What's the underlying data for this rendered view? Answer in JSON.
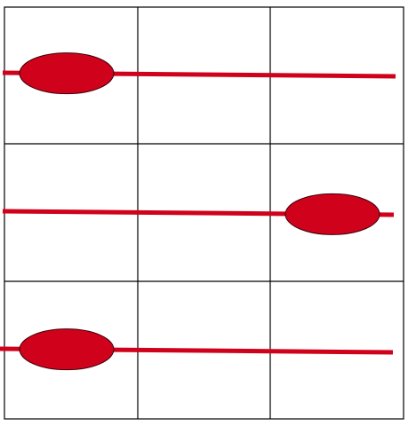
{
  "board": {
    "rows": 3,
    "cols": 3,
    "line_color": "#000000",
    "background": "#ffffff"
  },
  "rods": [
    {
      "name": "rod-top",
      "bead_column": 1,
      "color": "#d0021b"
    },
    {
      "name": "rod-middle",
      "bead_column": 3,
      "color": "#d0021b"
    },
    {
      "name": "rod-bottom",
      "bead_column": 1,
      "color": "#d0021b"
    }
  ]
}
